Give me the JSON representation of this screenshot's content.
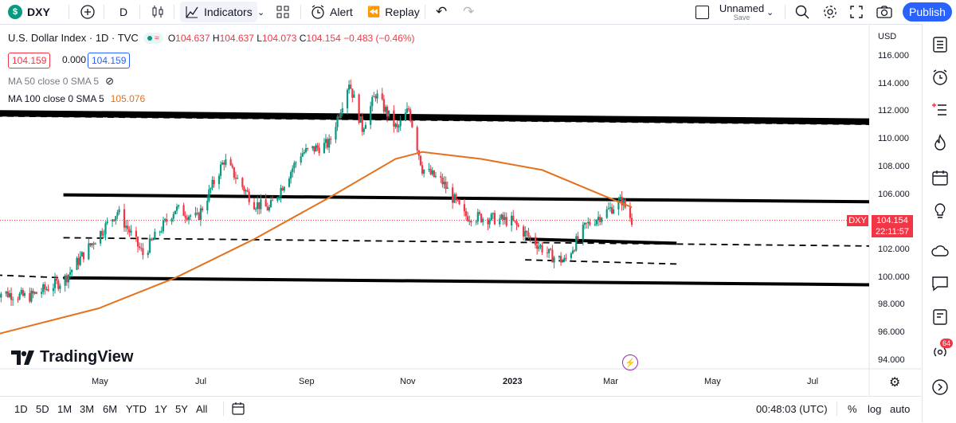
{
  "toolbar": {
    "symbol": "DXY",
    "symbol_badge": "$",
    "interval": "D",
    "indicators": "Indicators",
    "alert": "Alert",
    "replay": "Replay",
    "layout_name": "Unnamed",
    "save": "Save",
    "publish": "Publish"
  },
  "legend": {
    "title": "U.S. Dollar Index · 1D · TVC",
    "open_label": "O",
    "open": "104.637",
    "high_label": "H",
    "high": "104.637",
    "low_label": "L",
    "low": "104.073",
    "close_label": "C",
    "close": "104.154",
    "change": "−0.483 (−0.46%)",
    "sell": "104.159",
    "spread": "0.000",
    "buy": "104.159"
  },
  "indicators": {
    "ma50": "MA 50 close 0 SMA 5",
    "ma100": "MA 100 close 0 SMA 5",
    "ma100_value": "105.076"
  },
  "y_axis": {
    "currency": "USD",
    "ticks": [
      "116.000",
      "114.000",
      "112.000",
      "110.000",
      "108.000",
      "106.000",
      "104.000",
      "102.000",
      "100.000",
      "98.000",
      "96.000",
      "94.000"
    ]
  },
  "x_axis": {
    "ticks": [
      "May",
      "Jul",
      "Sep",
      "Nov",
      "2023",
      "Mar",
      "May",
      "Jul"
    ]
  },
  "last_price": {
    "symbol": "DXY",
    "price": "104.154",
    "countdown": "22:11:57"
  },
  "branding": {
    "name": "TradingView"
  },
  "bottom": {
    "ranges": [
      "1D",
      "5D",
      "1M",
      "3M",
      "6M",
      "YTD",
      "1Y",
      "5Y",
      "All"
    ],
    "time": "00:48:03 (UTC)",
    "percent": "%",
    "log": "log",
    "auto": "auto"
  },
  "badges": {
    "notifications": "64"
  },
  "colors": {
    "up": "#089981",
    "down": "#f23645",
    "ma100": "#e5711d",
    "accent": "#2962ff"
  },
  "chart_data": {
    "type": "candlestick",
    "ylim": [
      93.0,
      117.0
    ],
    "y_ticks": [
      116,
      114,
      112,
      110,
      108,
      106,
      104,
      102,
      100,
      98,
      96,
      94
    ],
    "x_ticks": [
      "May",
      "Jul",
      "Sep",
      "Nov",
      "2023",
      "Mar",
      "May",
      "Jul"
    ],
    "price_path": [
      {
        "date": "2022-03-01",
        "close": 99.0
      },
      {
        "date": "2022-03-20",
        "close": 98.6
      },
      {
        "date": "2022-04-10",
        "close": 99.8
      },
      {
        "date": "2022-04-25",
        "close": 102.2
      },
      {
        "date": "2022-05-12",
        "close": 104.8
      },
      {
        "date": "2022-05-27",
        "close": 101.7
      },
      {
        "date": "2022-06-15",
        "close": 105.0
      },
      {
        "date": "2022-06-28",
        "close": 104.3
      },
      {
        "date": "2022-07-14",
        "close": 108.5
      },
      {
        "date": "2022-08-01",
        "close": 105.4
      },
      {
        "date": "2022-08-10",
        "close": 105.0
      },
      {
        "date": "2022-08-29",
        "close": 109.0
      },
      {
        "date": "2022-09-15",
        "close": 109.7
      },
      {
        "date": "2022-09-27",
        "close": 114.2
      },
      {
        "date": "2022-10-05",
        "close": 110.8
      },
      {
        "date": "2022-10-13",
        "close": 113.3
      },
      {
        "date": "2022-10-26",
        "close": 110.7
      },
      {
        "date": "2022-11-02",
        "close": 112.2
      },
      {
        "date": "2022-11-10",
        "close": 107.9
      },
      {
        "date": "2022-11-22",
        "close": 106.9
      },
      {
        "date": "2022-12-05",
        "close": 104.5
      },
      {
        "date": "2022-12-20",
        "close": 104.3
      },
      {
        "date": "2023-01-02",
        "close": 104.1
      },
      {
        "date": "2023-01-10",
        "close": 103.2
      },
      {
        "date": "2023-01-25",
        "close": 101.6
      },
      {
        "date": "2023-02-02",
        "close": 101.2
      },
      {
        "date": "2023-02-15",
        "close": 103.8
      },
      {
        "date": "2023-02-28",
        "close": 104.9
      },
      {
        "date": "2023-03-08",
        "close": 105.6
      },
      {
        "date": "2023-03-14",
        "close": 104.154
      }
    ],
    "ma100": [
      {
        "date": "2022-03-01",
        "value": 95.9
      },
      {
        "date": "2022-05-01",
        "value": 97.8
      },
      {
        "date": "2022-06-15",
        "value": 100.0
      },
      {
        "date": "2022-08-01",
        "value": 102.8
      },
      {
        "date": "2022-09-15",
        "value": 105.8
      },
      {
        "date": "2022-10-25",
        "value": 108.6
      },
      {
        "date": "2022-11-10",
        "value": 109.1
      },
      {
        "date": "2022-12-15",
        "value": 108.6
      },
      {
        "date": "2023-01-20",
        "value": 107.8
      },
      {
        "date": "2023-02-20",
        "value": 106.2
      },
      {
        "date": "2023-03-14",
        "value": 105.1
      }
    ],
    "drawn_lines": [
      {
        "style": "solid-thick",
        "from": {
          "date": "2022-03-01",
          "price": 111.9
        },
        "to": {
          "date": "2023-09-01",
          "price": 111.3
        }
      },
      {
        "style": "dashed",
        "from": {
          "date": "2022-03-01",
          "price": 111.7
        },
        "to": {
          "date": "2023-09-01",
          "price": 111.1
        }
      },
      {
        "style": "solid",
        "from": {
          "date": "2022-04-10",
          "price": 106.0
        },
        "to": {
          "date": "2023-09-01",
          "price": 105.5
        }
      },
      {
        "style": "dashed",
        "from": {
          "date": "2022-04-10",
          "price": 102.9
        },
        "to": {
          "date": "2023-09-01",
          "price": 102.3
        }
      },
      {
        "style": "solid",
        "from": {
          "date": "2023-01-10",
          "price": 102.8
        },
        "to": {
          "date": "2023-04-10",
          "price": 102.5
        }
      },
      {
        "style": "dashed",
        "from": {
          "date": "2023-01-10",
          "price": 101.3
        },
        "to": {
          "date": "2023-04-10",
          "price": 101.0
        }
      },
      {
        "style": "dashed",
        "from": {
          "date": "2022-03-01",
          "price": 100.2
        },
        "to": {
          "date": "2022-04-10",
          "price": 100.0
        }
      },
      {
        "style": "solid",
        "from": {
          "date": "2022-04-10",
          "price": 100.0
        },
        "to": {
          "date": "2023-09-01",
          "price": 99.5
        }
      }
    ]
  }
}
